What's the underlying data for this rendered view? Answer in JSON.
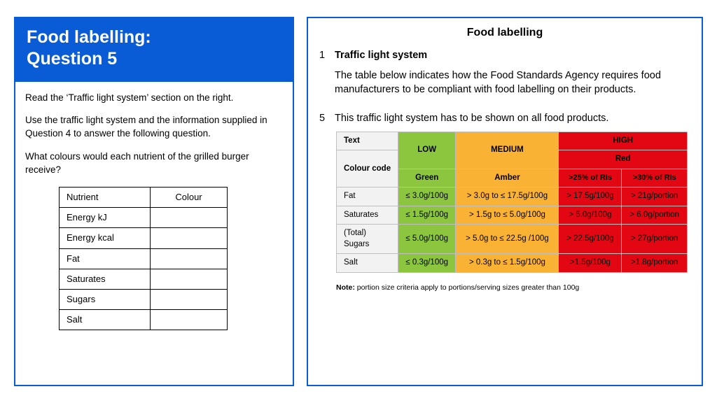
{
  "left": {
    "title_line1": "Food labelling:",
    "title_line2": "Question 5",
    "p1": "Read the ‘Traffic light system’ section on the right.",
    "p2": "Use the traffic light system and the information supplied in Question 4 to answer the following question.",
    "p3": "What colours would each nutrient of the grilled burger receive?",
    "answer_table": {
      "headers": [
        "Nutrient",
        "Colour"
      ],
      "rows": [
        "Energy kJ",
        "Energy kcal",
        "Fat",
        "Saturates",
        "Sugars",
        "Salt"
      ]
    }
  },
  "right": {
    "title": "Food labelling",
    "num1": "1",
    "sub1": "Traffic light system",
    "intro": "The table below indicates how the Food Standards Agency requires food manufacturers to be compliant with food labelling on their products.",
    "num5": "5",
    "line5": "This traffic light system has to be shown on all food products.",
    "note_label": "Note:",
    "note_text": " portion size criteria apply to portions/serving sizes greater than 100g",
    "traffic": {
      "colors": {
        "green": "#8cc63f",
        "amber": "#f9b233",
        "red": "#e30613"
      },
      "head": {
        "text": "Text",
        "low": "LOW",
        "medium": "MEDIUM",
        "high": "HIGH",
        "code": "Colour code",
        "green": "Green",
        "amber": "Amber",
        "red": "Red",
        "ri25": ">25% of RIs",
        "ri30": ">30% of RIs"
      },
      "rows": [
        {
          "label": "Fat",
          "low": "≤ 3.0g/100g",
          "med": "> 3.0g to ≤ 17.5g/100g",
          "h1": "> 17.5g/100g",
          "h2": "> 21g/portion"
        },
        {
          "label": "Saturates",
          "low": "≤ 1.5g/100g",
          "med": "> 1.5g to ≤ 5.0g/100g",
          "h1": "> 5.0g/100g",
          "h2": "> 6.0g/portion"
        },
        {
          "label": "(Total) Sugars",
          "low": "≤ 5.0g/100g",
          "med": "> 5.0g to ≤ 22.5g /100g",
          "h1": "> 22.5g/100g",
          "h2": "> 27g/portion"
        },
        {
          "label": "Salt",
          "low": "≤ 0.3g/100g",
          "med": "> 0.3g to ≤ 1.5g/100g",
          "h1": ">1.5g/100g",
          "h2": ">1.8g/portion"
        }
      ]
    }
  }
}
